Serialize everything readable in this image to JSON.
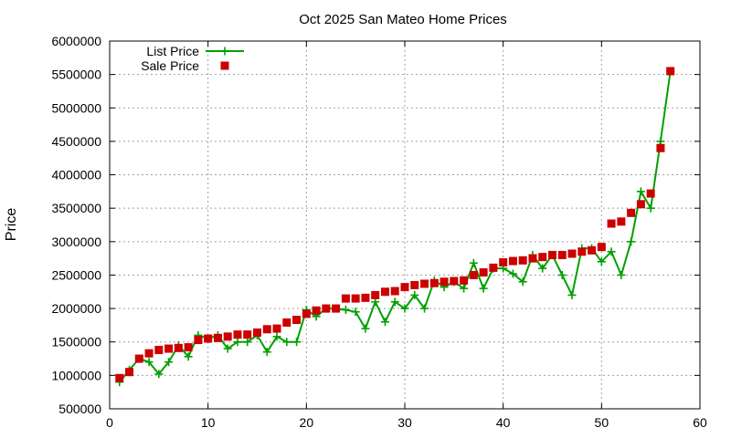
{
  "chart_data": {
    "type": "line",
    "title": "Oct 2025 San Mateo Home Prices",
    "xlabel": "",
    "ylabel": "Price",
    "xlim": [
      0,
      60
    ],
    "ylim": [
      500000,
      6000000
    ],
    "x_ticks": [
      0,
      10,
      20,
      30,
      40,
      50,
      60
    ],
    "y_ticks": [
      500000,
      1000000,
      1500000,
      2000000,
      2500000,
      3000000,
      3500000,
      4000000,
      4500000,
      5000000,
      5500000,
      6000000
    ],
    "grid": true,
    "legend_position": "top-left",
    "x": [
      1,
      2,
      3,
      4,
      5,
      6,
      7,
      8,
      9,
      10,
      11,
      12,
      13,
      14,
      15,
      16,
      17,
      18,
      19,
      20,
      21,
      22,
      23,
      24,
      25,
      26,
      27,
      28,
      29,
      30,
      31,
      32,
      33,
      34,
      35,
      36,
      37,
      38,
      39,
      40,
      41,
      42,
      43,
      44,
      45,
      46,
      47,
      48,
      49,
      50,
      51,
      52,
      53,
      54,
      55,
      56,
      57
    ],
    "series": [
      {
        "name": "List Price",
        "style": "linespoints",
        "color": "#00a000",
        "marker": "plus",
        "values": [
          900000,
          1080000,
          1250000,
          1200000,
          1020000,
          1200000,
          1450000,
          1280000,
          1600000,
          1550000,
          1600000,
          1400000,
          1500000,
          1500000,
          1600000,
          1350000,
          1580000,
          1500000,
          1500000,
          1980000,
          1880000,
          2000000,
          2000000,
          1980000,
          1950000,
          1700000,
          2100000,
          1800000,
          2100000,
          2000000,
          2200000,
          2000000,
          2420000,
          2320000,
          2400000,
          2300000,
          2680000,
          2300000,
          2600000,
          2600000,
          2520000,
          2400000,
          2800000,
          2600000,
          2800000,
          2500000,
          2200000,
          2900000,
          2900000,
          2700000,
          2850000,
          2500000,
          3000000,
          3750000,
          3500000,
          4500000,
          5550000
        ]
      },
      {
        "name": "Sale Price",
        "style": "points",
        "color": "#cc0000",
        "marker": "square",
        "values": [
          960000,
          1050000,
          1250000,
          1330000,
          1380000,
          1400000,
          1410000,
          1420000,
          1530000,
          1550000,
          1560000,
          1580000,
          1610000,
          1610000,
          1640000,
          1690000,
          1700000,
          1790000,
          1830000,
          1920000,
          1970000,
          2000000,
          2000000,
          2150000,
          2150000,
          2160000,
          2200000,
          2250000,
          2260000,
          2320000,
          2350000,
          2370000,
          2380000,
          2400000,
          2410000,
          2420000,
          2500000,
          2540000,
          2610000,
          2690000,
          2710000,
          2720000,
          2750000,
          2770000,
          2800000,
          2800000,
          2820000,
          2850000,
          2870000,
          2920000,
          3270000,
          3300000,
          3430000,
          3560000,
          3720000,
          4400000,
          5550000
        ]
      }
    ]
  }
}
